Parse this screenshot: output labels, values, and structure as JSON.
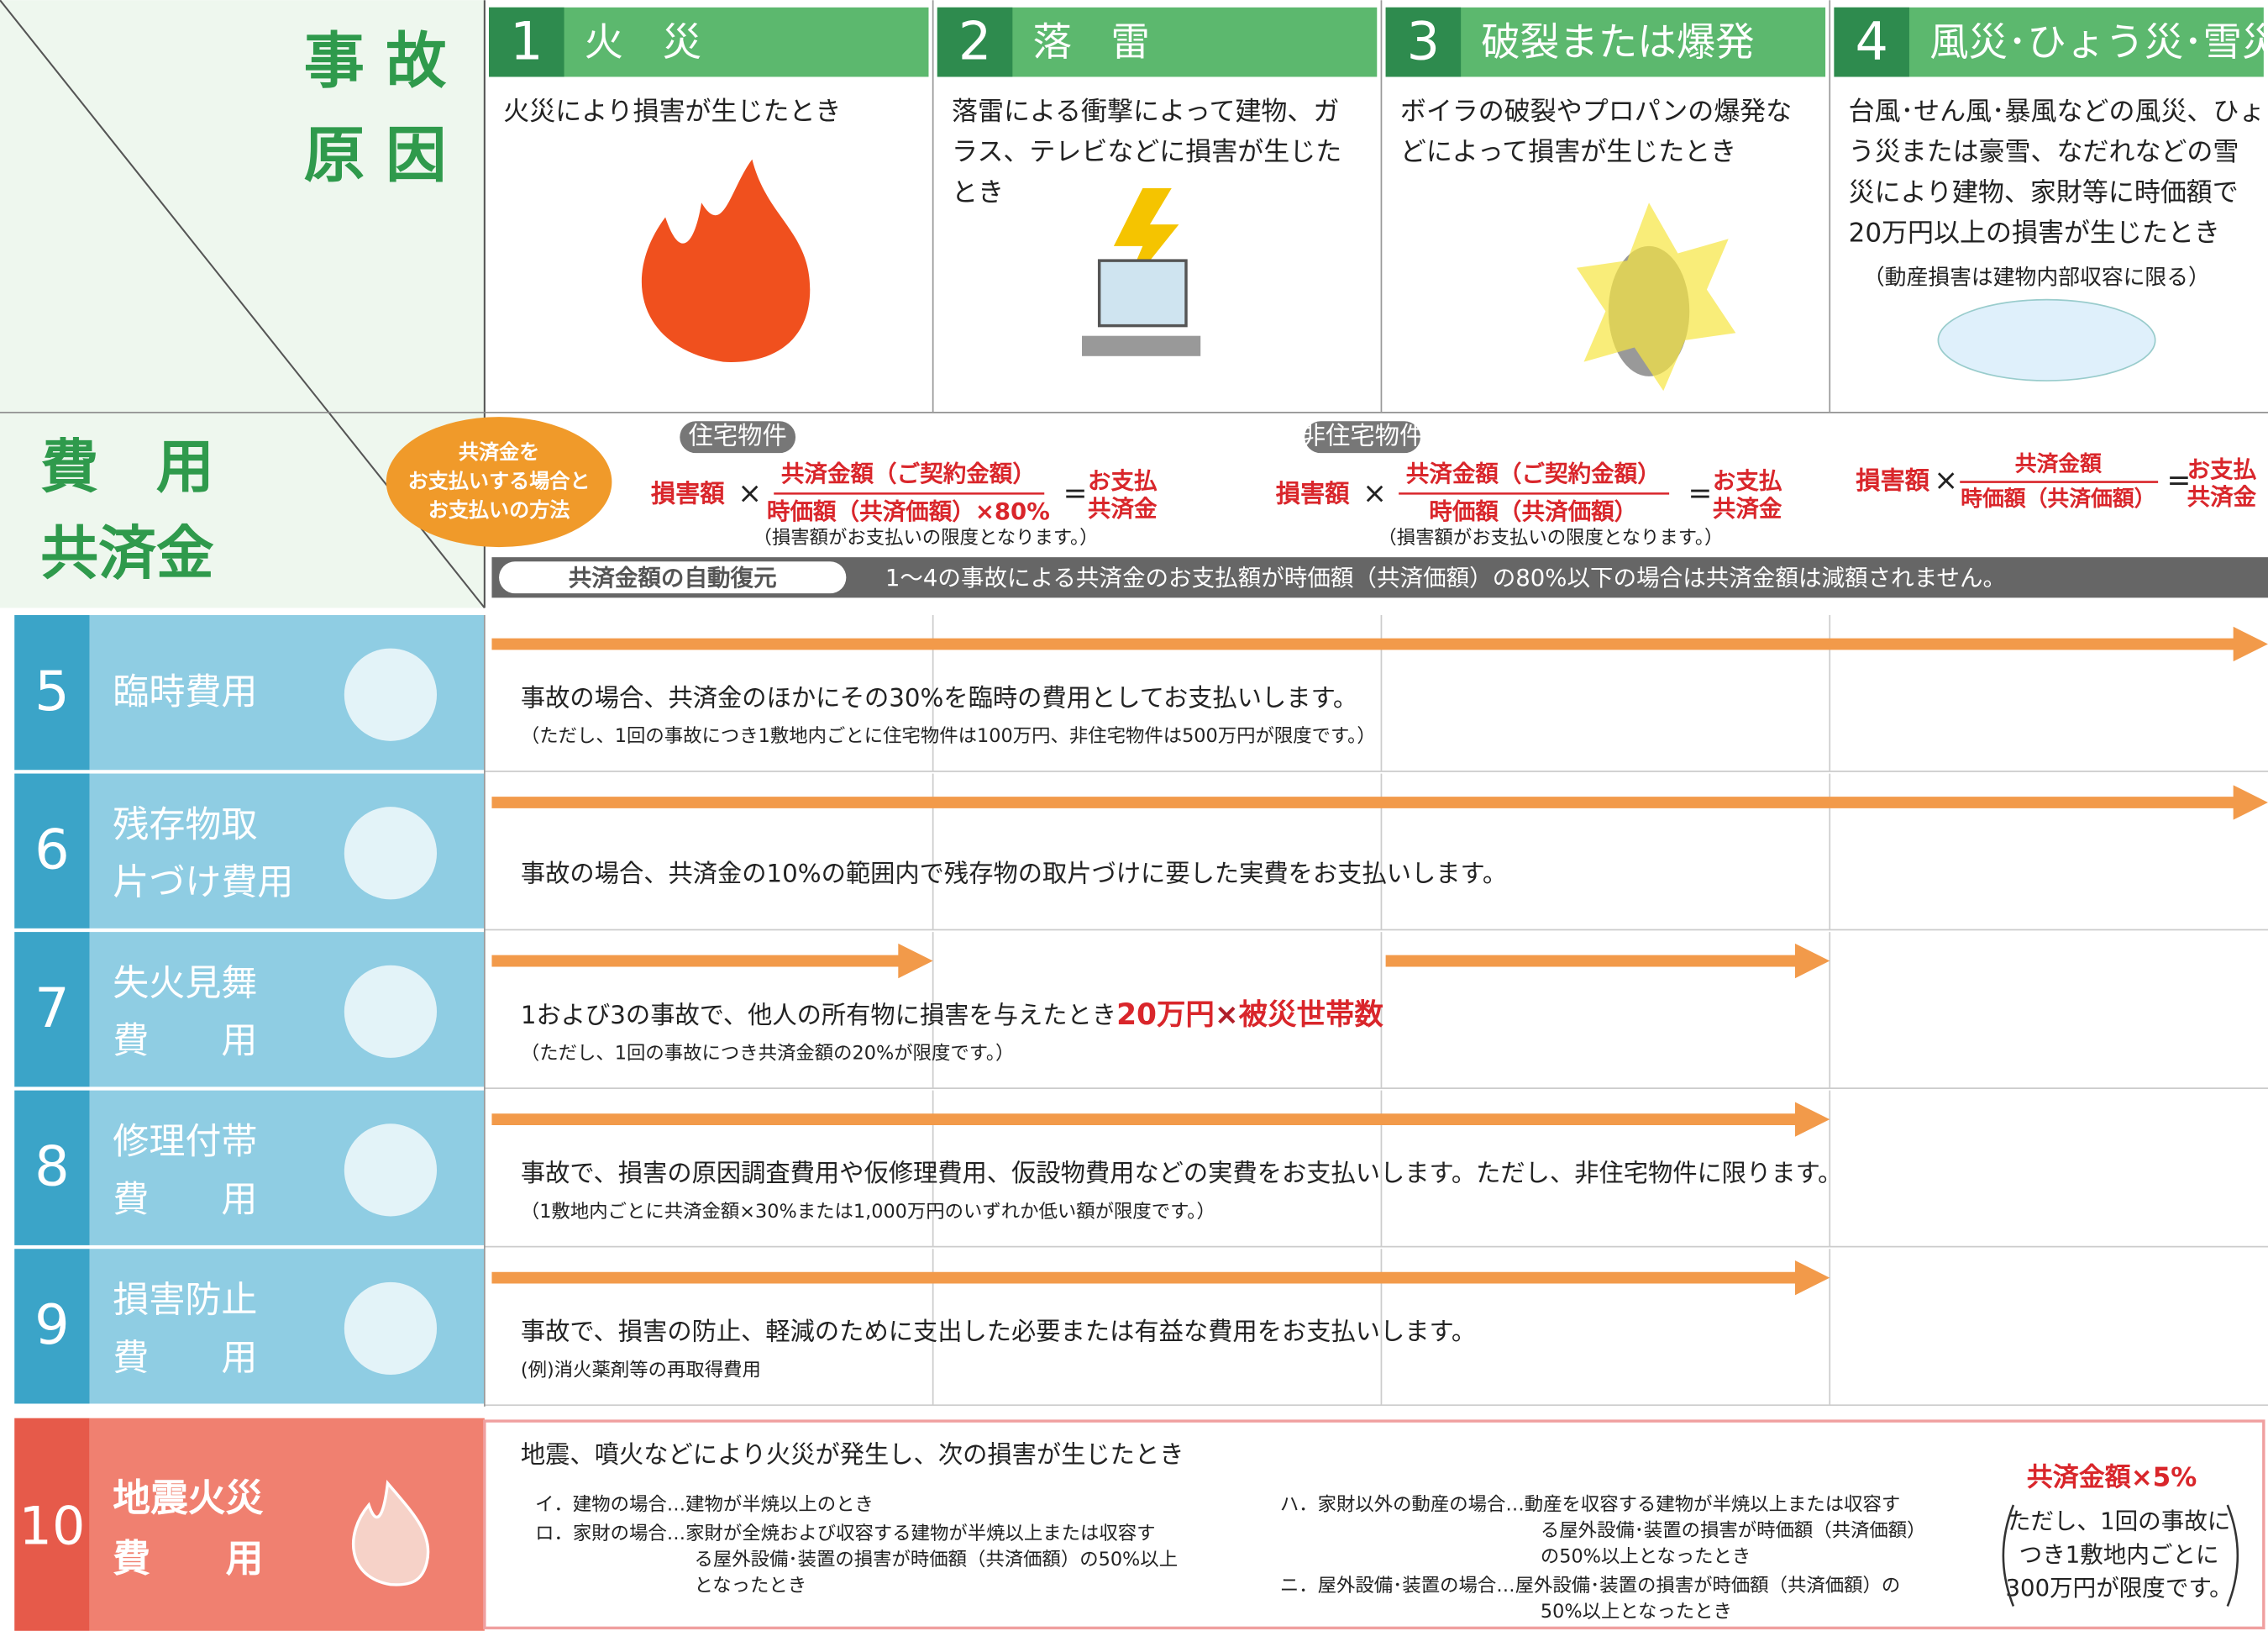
{
  "corner": {
    "cause": [
      "事 故",
      "原 因"
    ],
    "fee": [
      "費　用",
      "共済金"
    ]
  },
  "causes": [
    {
      "number": "1",
      "title": "火　災",
      "description": [
        "火災により損害が生じたとき"
      ]
    },
    {
      "number": "2",
      "title": "落　雷",
      "description": [
        "落雷による衝撃によって建物、ガ",
        "ラス、テレビなどに損害が生じた",
        "とき"
      ]
    },
    {
      "number": "3",
      "title": "破裂または爆発",
      "description": [
        "ボイラの破裂やプロパンの爆発な",
        "どによって損害が生じたとき"
      ]
    },
    {
      "number": "4",
      "title": "風災･ひょう災･雪災",
      "description": [
        "台風･せん風･暴風などの風災、ひょ",
        "う災または豪雪、なだれなどの雪",
        "災により建物、家財等に時価額で",
        "20万円以上の損害が生じたとき"
      ],
      "note": "（動産損害は建物内部収容に限る）"
    }
  ],
  "payment": {
    "badge": [
      "共済金を",
      "お支払いする場合と",
      "お支払いの方法"
    ],
    "residential": {
      "label": "住宅物件",
      "damage": "損害額",
      "times": "×",
      "numerator": "共済金額（ご契約金額）",
      "denominator": "時価額（共済価額）×80%",
      "equals": "=",
      "result": [
        "お支払",
        "共済金"
      ],
      "note": "（損害額がお支払いの限度となります。）"
    },
    "non_residential": {
      "label": "非住宅物件",
      "damage": "損害額",
      "times": "×",
      "numerator": "共済金額（ご契約金額）",
      "denominator": "時価額（共済価額）",
      "equals": "=",
      "result": [
        "お支払",
        "共済金"
      ],
      "note": "（損害額がお支払いの限度となります。）"
    },
    "storm": {
      "damage": "損害額",
      "times": "×",
      "numerator": "共済金額",
      "denominator": "時価額（共済価額）",
      "equals": "=",
      "result": [
        "お支払",
        "共済金"
      ]
    }
  },
  "auto_restore": {
    "label": "共済金額の自動復元",
    "text": "1～4の事故による共済金のお支払額が時価額（共済価額）の80%以下の場合は共済金額は減額されません。"
  },
  "expenses": [
    {
      "number": "5",
      "name": [
        "臨時費用"
      ],
      "description": "事故の場合、共済金のほかにその30%を臨時の費用としてお支払いします。",
      "note": "（ただし、1回の事故につき1敷地内ごとに住宅物件は100万円、非住宅物件は500万円が限度です。）"
    },
    {
      "number": "6",
      "name": [
        "残存物取",
        "片づけ費用"
      ],
      "description": "事故の場合、共済金の10%の範囲内で残存物の取片づけに要した実費をお支払いします。"
    },
    {
      "number": "7",
      "name": [
        "失火見舞",
        "費　　用"
      ],
      "description_parts": [
        "1および3の事故で、他人の所有物に損害を与えたとき",
        "20万円",
        "×",
        "被災世帯数"
      ],
      "note": "（ただし、1回の事故につき共済金額の20%が限度です。）"
    },
    {
      "number": "8",
      "name": [
        "修理付帯",
        "費　　用"
      ],
      "description": "事故で、損害の原因調査費用や仮修理費用、仮設物費用などの実費をお支払いします。ただし、非住宅物件に限ります。",
      "note": "（1敷地内ごとに共済金額×30%または1,000万円のいずれか低い額が限度です。）"
    },
    {
      "number": "9",
      "name": [
        "損害防止",
        "費　　用"
      ],
      "description": "事故で、損害の防止、軽減のために支出した必要または有益な費用をお支払いします。",
      "note": "(例)消火薬剤等の再取得費用"
    }
  ],
  "earthquake": {
    "number": "10",
    "name": [
      "地震火災",
      "費　　用"
    ],
    "heading": "地震、噴火などにより火災が発生し、次の損害が生じたとき",
    "items_left": [
      [
        "イ．建物の場合…建物が半焼以上のとき"
      ],
      [
        "ロ．家財の場合…家財が全焼および収容する建物が半焼以上または収容す",
        "る屋外設備･装置の損害が時価額（共済価額）の50%以上",
        "となったとき"
      ]
    ],
    "items_right": [
      [
        "ハ．家財以外の動産の場合…動産を収容する建物が半焼以上または収容す",
        "る屋外設備･装置の損害が時価額（共済価額）",
        "の50%以上となったとき"
      ],
      [
        "ニ．屋外設備･装置の場合…屋外設備･装置の損害が時価額（共済価額）の",
        "50%以上となったとき"
      ]
    ],
    "amount": "共済金額×5%",
    "limit": [
      "ただし、1回の事故に",
      "つき1敷地内ごとに",
      "300万円が限度です。"
    ]
  }
}
